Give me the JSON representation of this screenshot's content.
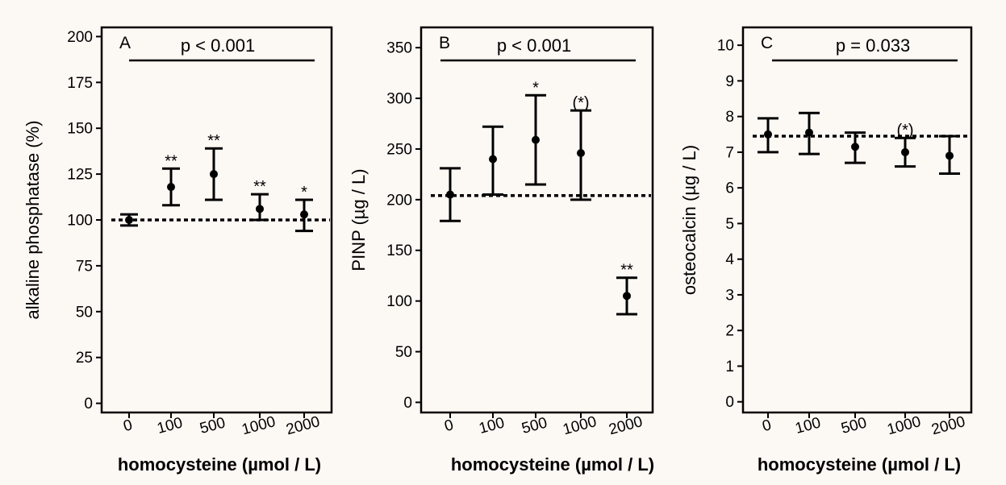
{
  "chart_data": [
    {
      "type": "scatter",
      "panel": "A",
      "p_value": "p < 0.001",
      "ylabel": "alkaline phosphatase (%)",
      "xlabel": "homocysteine (µmol / L)",
      "categories": [
        "0",
        "100",
        "500",
        "1000",
        "2000"
      ],
      "ylim": [
        -5,
        205
      ],
      "yticks": [
        0,
        25,
        50,
        75,
        100,
        125,
        150,
        175,
        200
      ],
      "reference_line": 100,
      "series": [
        {
          "values": [
            100,
            118,
            125,
            106,
            103
          ],
          "lower": [
            97,
            108,
            111,
            100,
            94
          ],
          "upper": [
            103,
            128,
            139,
            114,
            111
          ],
          "significance": [
            "",
            "**",
            "**",
            "**",
            "*"
          ]
        }
      ]
    },
    {
      "type": "scatter",
      "panel": "B",
      "p_value": "p < 0.001",
      "ylabel": "PINP (µg / L)",
      "xlabel": "homocysteine (µmol / L)",
      "categories": [
        "0",
        "100",
        "500",
        "1000",
        "2000"
      ],
      "ylim": [
        -10,
        370
      ],
      "yticks": [
        0,
        50,
        100,
        150,
        200,
        250,
        300,
        350
      ],
      "reference_line": 204,
      "series": [
        {
          "values": [
            205,
            240,
            259,
            246,
            105
          ],
          "lower": [
            179,
            205,
            215,
            200,
            87
          ],
          "upper": [
            231,
            272,
            303,
            288,
            123
          ],
          "significance": [
            "",
            "",
            "*",
            "(*)",
            "**"
          ]
        }
      ]
    },
    {
      "type": "scatter",
      "panel": "C",
      "p_value": "p = 0.033",
      "ylabel": "osteocalcin (µg / L)",
      "xlabel": "homocysteine (µmol / L)",
      "categories": [
        "0",
        "100",
        "500",
        "1000",
        "2000"
      ],
      "ylim": [
        -0.3,
        10.5
      ],
      "yticks": [
        0,
        1,
        2,
        3,
        4,
        5,
        6,
        7,
        8,
        9,
        10
      ],
      "reference_line": 7.45,
      "series": [
        {
          "values": [
            7.5,
            7.55,
            7.15,
            7.0,
            6.9
          ],
          "lower": [
            7.0,
            6.95,
            6.7,
            6.6,
            6.4
          ],
          "upper": [
            7.95,
            8.1,
            7.55,
            7.4,
            7.45
          ],
          "significance": [
            "",
            "",
            "",
            "(*)",
            ""
          ]
        }
      ]
    }
  ]
}
